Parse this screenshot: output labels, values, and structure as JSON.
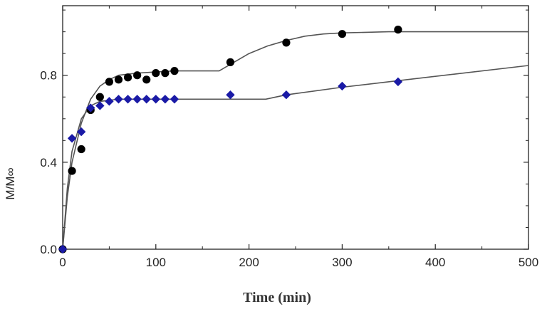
{
  "chart_data": {
    "type": "scatter",
    "title": "",
    "xlabel": "Time (min)",
    "ylabel": "M/M∞",
    "xlim": [
      0,
      500
    ],
    "ylim": [
      0,
      1.12
    ],
    "x_ticks": [
      0,
      100,
      200,
      300,
      400,
      500
    ],
    "x_tick_labels": [
      "0",
      "100",
      "200",
      "300",
      "400",
      "500"
    ],
    "y_ticks": [
      0.0,
      0.4,
      0.8
    ],
    "y_tick_labels": [
      "0.0",
      "0.4",
      "0.8"
    ],
    "grid": false,
    "legend": "none",
    "series": [
      {
        "marker": "circle",
        "color": "#000000",
        "points": [
          [
            0,
            0
          ],
          [
            10,
            0.36
          ],
          [
            20,
            0.46
          ],
          [
            30,
            0.64
          ],
          [
            40,
            0.7
          ],
          [
            50,
            0.77
          ],
          [
            60,
            0.78
          ],
          [
            70,
            0.79
          ],
          [
            80,
            0.8
          ],
          [
            90,
            0.78
          ],
          [
            100,
            0.81
          ],
          [
            110,
            0.81
          ],
          [
            120,
            0.82
          ],
          [
            180,
            0.86
          ],
          [
            240,
            0.95
          ],
          [
            300,
            0.99
          ],
          [
            360,
            1.01
          ]
        ],
        "fit": [
          [
            0,
            0
          ],
          [
            5,
            0.24
          ],
          [
            10,
            0.4
          ],
          [
            20,
            0.58
          ],
          [
            30,
            0.69
          ],
          [
            40,
            0.75
          ],
          [
            50,
            0.78
          ],
          [
            60,
            0.8
          ],
          [
            80,
            0.81
          ],
          [
            100,
            0.815
          ],
          [
            120,
            0.82
          ],
          [
            168,
            0.82
          ],
          [
            180,
            0.85
          ],
          [
            200,
            0.9
          ],
          [
            220,
            0.935
          ],
          [
            240,
            0.96
          ],
          [
            260,
            0.98
          ],
          [
            280,
            0.99
          ],
          [
            300,
            0.995
          ],
          [
            350,
            1.0
          ],
          [
            500,
            1.0
          ]
        ]
      },
      {
        "marker": "diamond",
        "color": "#1a1aa6",
        "points": [
          [
            0,
            0
          ],
          [
            10,
            0.51
          ],
          [
            20,
            0.54
          ],
          [
            30,
            0.65
          ],
          [
            40,
            0.66
          ],
          [
            50,
            0.68
          ],
          [
            60,
            0.69
          ],
          [
            70,
            0.69
          ],
          [
            80,
            0.69
          ],
          [
            90,
            0.69
          ],
          [
            100,
            0.69
          ],
          [
            110,
            0.69
          ],
          [
            120,
            0.69
          ],
          [
            180,
            0.71
          ],
          [
            240,
            0.71
          ],
          [
            300,
            0.75
          ],
          [
            360,
            0.77
          ]
        ],
        "fit": [
          [
            0,
            0
          ],
          [
            5,
            0.28
          ],
          [
            10,
            0.45
          ],
          [
            20,
            0.6
          ],
          [
            30,
            0.66
          ],
          [
            40,
            0.68
          ],
          [
            60,
            0.69
          ],
          [
            120,
            0.69
          ],
          [
            218,
            0.69
          ],
          [
            240,
            0.71
          ],
          [
            300,
            0.745
          ],
          [
            360,
            0.775
          ],
          [
            420,
            0.805
          ],
          [
            500,
            0.845
          ]
        ]
      }
    ]
  }
}
